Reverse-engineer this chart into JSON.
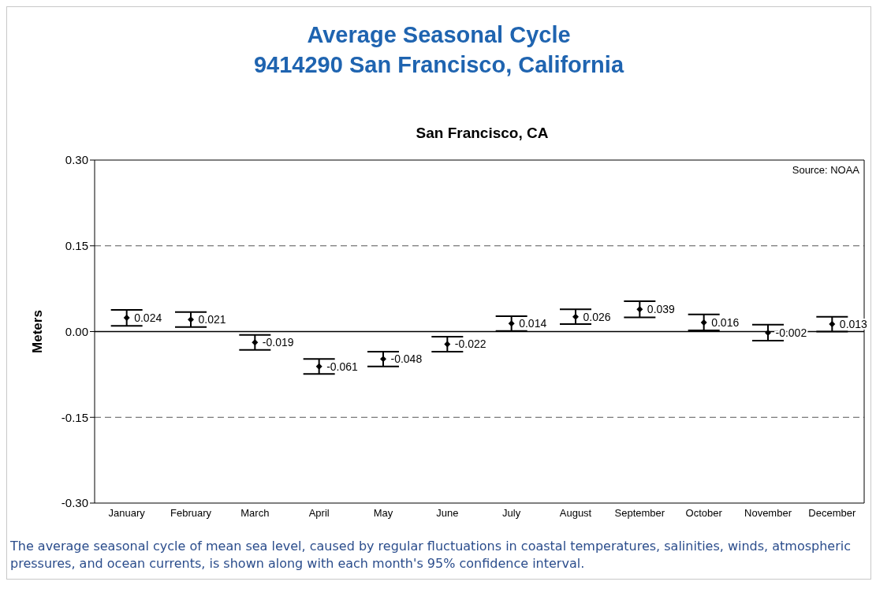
{
  "chart_data": {
    "type": "scatter",
    "title": "Average Seasonal Cycle\n9414290 San Francisco, California",
    "subtitle": "San Francisco, CA",
    "ylabel": "Meters",
    "categories": [
      "January",
      "February",
      "March",
      "April",
      "May",
      "June",
      "July",
      "August",
      "September",
      "October",
      "November",
      "December"
    ],
    "series": [
      {
        "color": "#000000",
        "values": [
          0.024,
          0.021,
          -0.019,
          -0.061,
          -0.048,
          -0.022,
          0.014,
          0.026,
          0.039,
          0.016,
          -0.002,
          0.013
        ],
        "errors": [
          0.014,
          0.013,
          0.013,
          0.013,
          0.013,
          0.013,
          0.013,
          0.013,
          0.014,
          0.014,
          0.014,
          0.013
        ]
      }
    ],
    "ylim": [
      -0.3,
      0.3
    ],
    "yticks": [
      {
        "value": -0.3,
        "label": "-0.30"
      },
      {
        "value": -0.15,
        "label": "-0.15"
      },
      {
        "value": 0,
        "label": "0.00"
      },
      {
        "value": 0.15,
        "label": "0.15"
      },
      {
        "value": 0.3,
        "label": "0.30"
      }
    ],
    "ref_lines": [
      {
        "axis": "y",
        "value": 0.15,
        "color": "#555555",
        "line_style": "dashed"
      },
      {
        "axis": "y",
        "value": -0.15,
        "color": "#555555",
        "line_style": "dashed"
      },
      {
        "axis": "y",
        "value": 0,
        "color": "#000000",
        "line_style": "solid"
      }
    ],
    "marker": "diamond",
    "data_labels": true,
    "grid": false,
    "legend": false,
    "annotations": [
      "Source: NOAA",
      "The average seasonal cycle of mean sea level, caused by regular fluctuations in coastal temperatures, salinities, winds, atmospheric pressures, and ocean currents, is shown along with each month's 95% confidence interval."
    ]
  }
}
